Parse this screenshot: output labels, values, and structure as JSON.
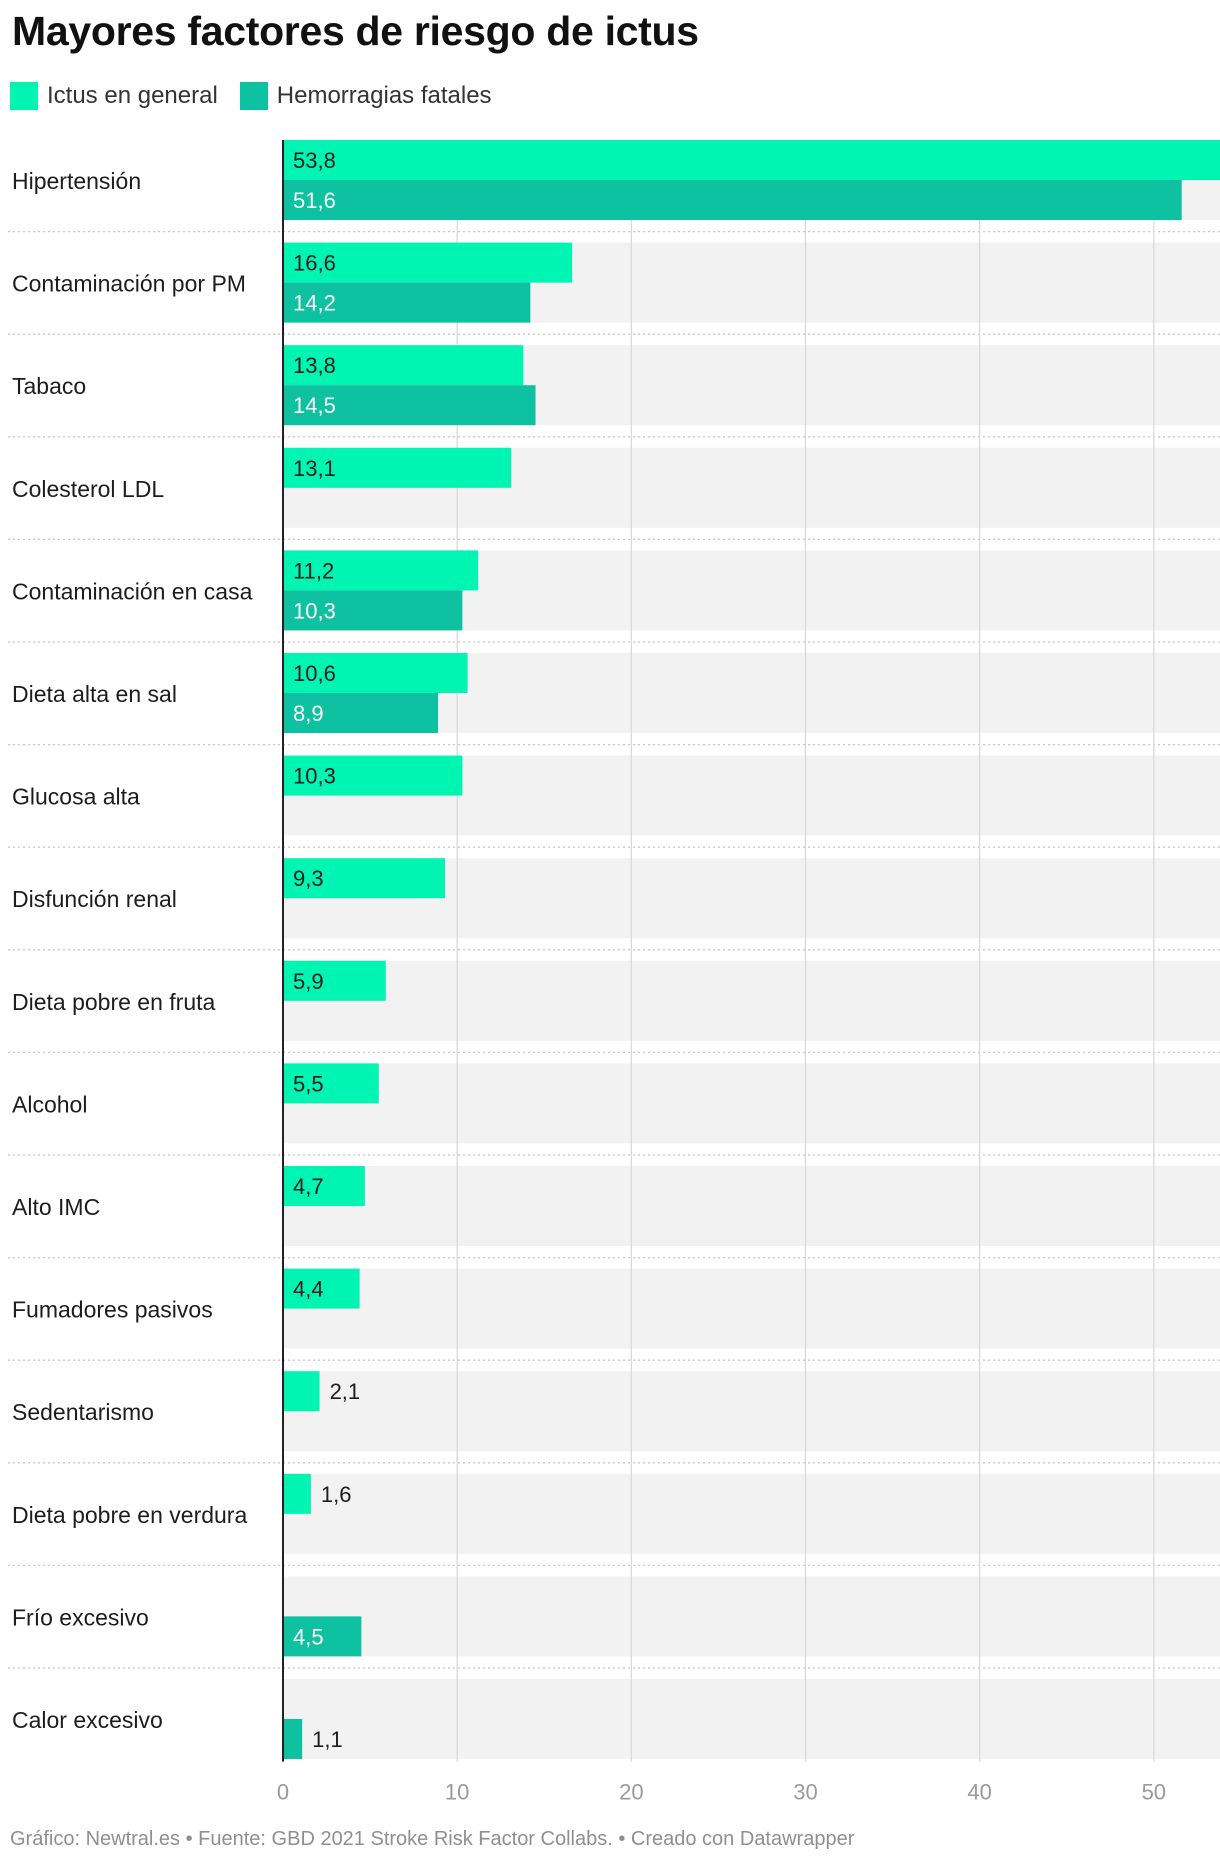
{
  "title": "Mayores factores de riesgo de ictus",
  "legend": [
    {
      "label": "Ictus en general",
      "color": "#00f5b2"
    },
    {
      "label": "Hemorragias fatales",
      "color": "#0ec1a0"
    }
  ],
  "footer": "Gráfico: Newtral.es • Fuente: GBD 2021 Stroke Risk Factor Collabs. • Creado con Datawrapper",
  "chart_data": {
    "type": "bar",
    "orientation": "horizontal",
    "categories": [
      "Hipertensión",
      "Contaminación por PM",
      "Tabaco",
      "Colesterol LDL",
      "Contaminación en casa",
      "Dieta alta en sal",
      "Glucosa alta",
      "Disfunción renal",
      "Dieta pobre en fruta",
      "Alcohol",
      "Alto IMC",
      "Fumadores pasivos",
      "Sedentarismo",
      "Dieta pobre en verdura",
      "Frío excesivo",
      "Calor excesivo"
    ],
    "series": [
      {
        "name": "Ictus en general",
        "color": "#00f5b2",
        "values": [
          53.8,
          16.6,
          13.8,
          13.1,
          11.2,
          10.6,
          10.3,
          9.3,
          5.9,
          5.5,
          4.7,
          4.4,
          2.1,
          1.6,
          null,
          null
        ],
        "labels": [
          "53,8",
          "16,6",
          "13,8",
          "13,1",
          "11,2",
          "10,6",
          "10,3",
          "9,3",
          "5,9",
          "5,5",
          "4,7",
          "4,4",
          "2,1",
          "1,6",
          "",
          ""
        ]
      },
      {
        "name": "Hemorragias fatales",
        "color": "#0ec1a0",
        "values": [
          51.6,
          14.2,
          14.5,
          null,
          10.3,
          8.9,
          null,
          null,
          null,
          null,
          null,
          null,
          null,
          null,
          4.5,
          1.1
        ],
        "labels": [
          "51,6",
          "14,2",
          "14,5",
          "",
          "10,3",
          "8,9",
          "",
          "",
          "",
          "",
          "",
          "",
          "",
          "",
          "4,5",
          "1,1"
        ]
      }
    ],
    "xticks": [
      0,
      10,
      20,
      30,
      40,
      50
    ],
    "xtick_labels": [
      "0",
      "10",
      "20",
      "30",
      "40",
      "50"
    ],
    "xlim": [
      0,
      53.8
    ],
    "grid": true,
    "legend_position": "top-left"
  }
}
